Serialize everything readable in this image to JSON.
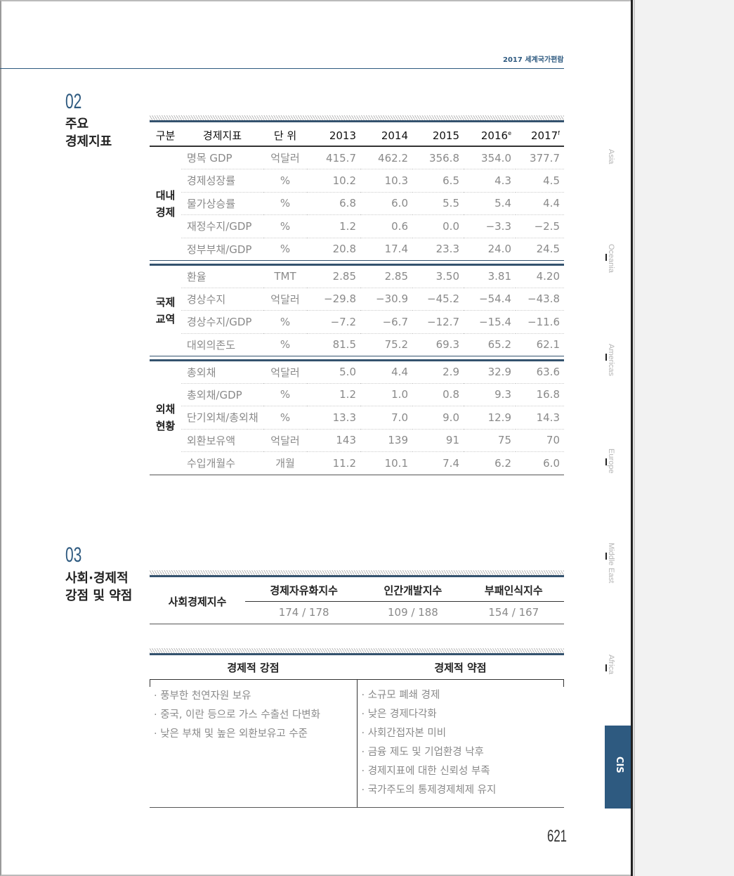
{
  "header": {
    "running_title": "2017 세계국가편람",
    "page_number": "621"
  },
  "section2": {
    "number": "02",
    "title_line1": "주요",
    "title_line2": "경제지표",
    "columns": [
      "구분",
      "경제지표",
      "단 위",
      "2013",
      "2014",
      "2015",
      "2016",
      "2017"
    ],
    "column_superscripts": {
      "2016": "e",
      "2017": "f"
    },
    "groups": [
      {
        "label_line1": "대내",
        "label_line2": "경제",
        "rows": [
          {
            "indicator": "명목 GDP",
            "unit": "억달러",
            "values": [
              "415.7",
              "462.2",
              "356.8",
              "354.0",
              "377.7"
            ]
          },
          {
            "indicator": "경제성장률",
            "unit": "%",
            "values": [
              "10.2",
              "10.3",
              "6.5",
              "4.3",
              "4.5"
            ]
          },
          {
            "indicator": "물가상승률",
            "unit": "%",
            "values": [
              "6.8",
              "6.0",
              "5.5",
              "5.4",
              "4.4"
            ]
          },
          {
            "indicator": "재정수지/GDP",
            "unit": "%",
            "values": [
              "1.2",
              "0.6",
              "0.0",
              "−3.3",
              "−2.5"
            ]
          },
          {
            "indicator": "정부부채/GDP",
            "unit": "%",
            "values": [
              "20.8",
              "17.4",
              "23.3",
              "24.0",
              "24.5"
            ]
          }
        ]
      },
      {
        "label_line1": "국제",
        "label_line2": "교역",
        "rows": [
          {
            "indicator": "환율",
            "unit": "TMT",
            "values": [
              "2.85",
              "2.85",
              "3.50",
              "3.81",
              "4.20"
            ]
          },
          {
            "indicator": "경상수지",
            "unit": "억달러",
            "values": [
              "−29.8",
              "−30.9",
              "−45.2",
              "−54.4",
              "−43.8"
            ]
          },
          {
            "indicator": "경상수지/GDP",
            "unit": "%",
            "values": [
              "−7.2",
              "−6.7",
              "−12.7",
              "−15.4",
              "−11.6"
            ]
          },
          {
            "indicator": "대외의존도",
            "unit": "%",
            "values": [
              "81.5",
              "75.2",
              "69.3",
              "65.2",
              "62.1"
            ]
          }
        ]
      },
      {
        "label_line1": "외채",
        "label_line2": "현황",
        "rows": [
          {
            "indicator": "총외채",
            "unit": "억달러",
            "values": [
              "5.0",
              "4.4",
              "2.9",
              "32.9",
              "63.6"
            ]
          },
          {
            "indicator": "총외채/GDP",
            "unit": "%",
            "values": [
              "1.2",
              "1.0",
              "0.8",
              "9.3",
              "16.8"
            ]
          },
          {
            "indicator": "단기외채/총외채",
            "unit": "%",
            "values": [
              "13.3",
              "7.0",
              "9.0",
              "12.9",
              "14.3"
            ]
          },
          {
            "indicator": "외환보유액",
            "unit": "억달러",
            "values": [
              "143",
              "139",
              "91",
              "75",
              "70"
            ]
          },
          {
            "indicator": "수입개월수",
            "unit": "개월",
            "values": [
              "11.2",
              "10.1",
              "7.4",
              "6.2",
              "6.0"
            ]
          }
        ]
      }
    ]
  },
  "section3": {
    "number": "03",
    "title_line1": "사회·경제적",
    "title_line2": "강점 및 약점",
    "index_label": "사회경제지수",
    "indices": [
      {
        "name": "경제자유화지수",
        "value": "174 / 178"
      },
      {
        "name": "인간개발지수",
        "value": "109 / 188"
      },
      {
        "name": "부패인식지수",
        "value": "154 / 167"
      }
    ],
    "strengths_title": "경제적 강점",
    "weaknesses_title": "경제적 약점",
    "strengths": [
      "· 풍부한 천연자원 보유",
      "· 중국, 이란 등으로 가스 수출선 다변화",
      "· 낮은 부채 및 높은 외환보유고 수준"
    ],
    "weaknesses": [
      "· 소규모 폐쇄 경제",
      "· 낮은 경제다각화",
      "· 사회간접자본 미비",
      "· 금융 제도 및 기업환경 낙후",
      "· 경제지표에 대한 신뢰성 부족",
      "· 국가주도의 통제경제체제 유지"
    ]
  },
  "side_tabs": [
    "Asia",
    "Oceania",
    "Americas",
    "Europe",
    "Middle East",
    "Africa"
  ],
  "active_tab": "CIS",
  "colors": {
    "accent": "#2e5a80",
    "active_tab": "#2e5a80"
  }
}
